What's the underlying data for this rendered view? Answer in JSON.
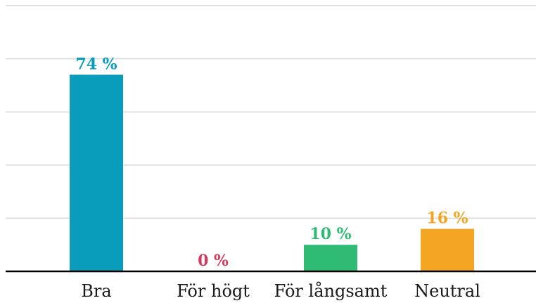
{
  "chart_data": {
    "type": "bar",
    "categories": [
      "Bra",
      "För högt",
      "För långsamt",
      "Neutral"
    ],
    "values": [
      74,
      0,
      10,
      16
    ],
    "value_labels": [
      "74 %",
      "0 %",
      "10 %",
      "16 %"
    ],
    "colors": [
      "#0a9cbb",
      "#d23c5a",
      "#2fbb74",
      "#f4a522"
    ],
    "title": "",
    "xlabel": "",
    "ylabel": "",
    "ylim": [
      0,
      100
    ],
    "gridlines": [
      0,
      20,
      40,
      60,
      80,
      100
    ],
    "grid": true,
    "legend": "none"
  }
}
